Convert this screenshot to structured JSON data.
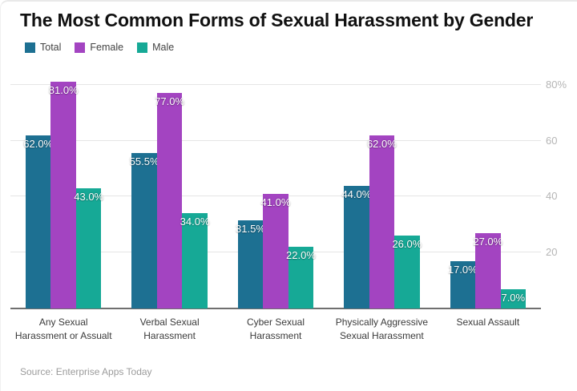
{
  "source": "Source: Enterprise Apps Today",
  "chart_data": {
    "type": "bar",
    "title": "The Most Common Forms of Sexual Harassment by Gender",
    "categories": [
      "Any Sexual Harassment or Assualt",
      "Verbal Sexual Harassment",
      "Cyber Sexual Harassment",
      "Physically Aggressive Sexual Harassment",
      "Sexual Assault"
    ],
    "series": [
      {
        "name": "Total",
        "color": "#1d7092",
        "values": [
          62.0,
          55.5,
          31.5,
          44.0,
          17.0
        ]
      },
      {
        "name": "Female",
        "color": "#a344c1",
        "values": [
          81.0,
          77.0,
          41.0,
          62.0,
          27.0
        ]
      },
      {
        "name": "Male",
        "color": "#16a996",
        "values": [
          43.0,
          34.0,
          22.0,
          26.0,
          7.0
        ]
      }
    ],
    "value_label_suffix": "%",
    "ylim": [
      0,
      84
    ],
    "yticks": [
      {
        "value": 20,
        "label": "20"
      },
      {
        "value": 40,
        "label": "40"
      },
      {
        "value": 60,
        "label": "60"
      },
      {
        "value": 80,
        "label": "80%"
      }
    ],
    "grid": true,
    "legend_position": "top-left",
    "axis_style": {
      "grid_color": "#e5e5e5",
      "axis_line_color": "#6f6f6f",
      "tick_text_color": "#b5b5b5"
    }
  }
}
